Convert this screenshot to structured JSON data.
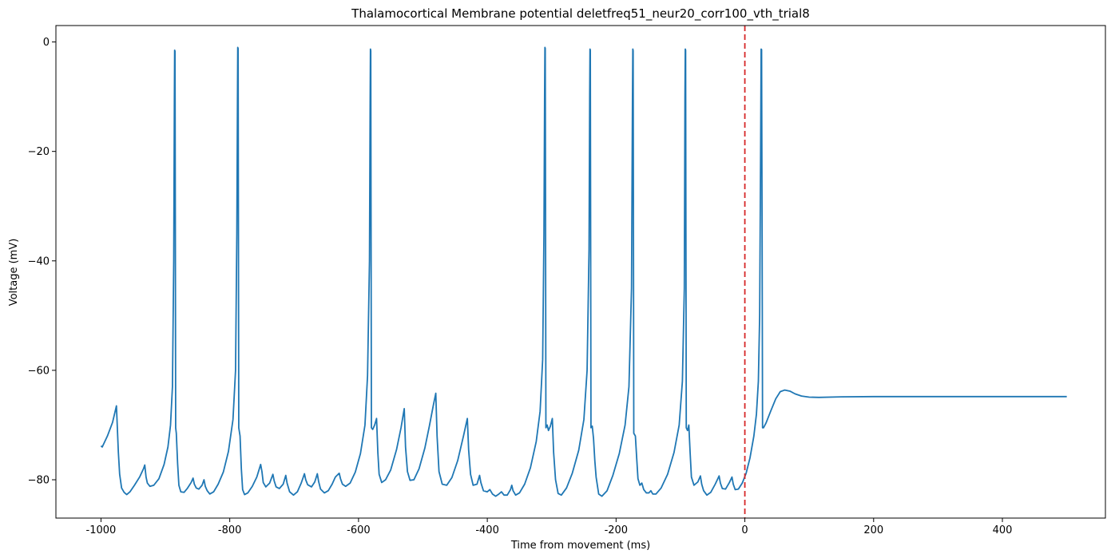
{
  "chart_data": {
    "type": "line",
    "title": "Thalamocortical Membrane potential  deletfreq51_neur20_corr100_vth_trial8",
    "xlabel": "Time from movement (ms)",
    "ylabel": "Voltage (mV)",
    "xlim": [
      -1070,
      560
    ],
    "ylim": [
      -87,
      3
    ],
    "x_ticks": [
      -1000,
      -800,
      -600,
      -400,
      -200,
      0,
      200,
      400
    ],
    "x_tick_labels": [
      "-1000",
      "-800",
      "-600",
      "-400",
      "-200",
      "0",
      "200",
      "400"
    ],
    "y_ticks": [
      -80,
      -60,
      -40,
      -20,
      0
    ],
    "y_tick_labels": [
      "−80",
      "−60",
      "−40",
      "−20",
      "0"
    ],
    "grid": false,
    "series": [
      {
        "color": "#1f77b4",
        "segments": [
          [
            [
              -1000,
              -73.8
            ],
            [
              -998,
              -74
            ],
            [
              -990,
              -72
            ],
            [
              -982,
              -69.5
            ],
            [
              -976,
              -66.5
            ],
            [
              -973,
              -75
            ],
            [
              -971,
              -79
            ],
            [
              -968,
              -81.5
            ],
            [
              -964,
              -82.3
            ],
            [
              -960,
              -82.7
            ],
            [
              -955,
              -82.2
            ],
            [
              -948,
              -81
            ],
            [
              -940,
              -79.5
            ],
            [
              -934,
              -78
            ],
            [
              -932,
              -77.3
            ],
            [
              -930,
              -79.5
            ],
            [
              -928,
              -80.6
            ],
            [
              -924,
              -81.2
            ],
            [
              -918,
              -81
            ],
            [
              -910,
              -79.8
            ],
            [
              -902,
              -77.2
            ],
            [
              -896,
              -74
            ],
            [
              -892,
              -70
            ],
            [
              -889,
              -63
            ],
            [
              -887,
              -40
            ],
            [
              -886,
              -10
            ],
            [
              -885.6,
              -1.5
            ],
            [
              -885,
              -1.7
            ],
            [
              -884.5,
              -35
            ],
            [
              -884,
              -70.5
            ],
            [
              -883,
              -71.5
            ],
            [
              -881,
              -77
            ],
            [
              -879,
              -81
            ],
            [
              -876,
              -82.2
            ],
            [
              -871,
              -82.3
            ],
            [
              -866,
              -81.6
            ],
            [
              -860,
              -80.5
            ],
            [
              -857,
              -79.7
            ],
            [
              -855,
              -80.8
            ],
            [
              -852,
              -81.5
            ],
            [
              -848,
              -81.7
            ],
            [
              -843,
              -81
            ],
            [
              -840,
              -80
            ],
            [
              -838,
              -81.2
            ],
            [
              -835,
              -82
            ],
            [
              -831,
              -82.6
            ],
            [
              -825,
              -82.2
            ],
            [
              -818,
              -80.8
            ],
            [
              -810,
              -78.6
            ],
            [
              -802,
              -74.8
            ],
            [
              -795,
              -69
            ],
            [
              -791,
              -60
            ],
            [
              -789,
              -35
            ],
            [
              -788,
              -10
            ],
            [
              -787.6,
              -1
            ],
            [
              -787,
              -1.2
            ],
            [
              -786.5,
              -35
            ],
            [
              -786,
              -70.5
            ],
            [
              -784,
              -72
            ],
            [
              -782,
              -78
            ],
            [
              -780,
              -81.8
            ],
            [
              -777,
              -82.7
            ],
            [
              -772,
              -82.4
            ],
            [
              -765,
              -81.2
            ],
            [
              -758,
              -79.5
            ],
            [
              -752,
              -77.2
            ],
            [
              -750,
              -78.5
            ],
            [
              -748,
              -80.5
            ],
            [
              -744,
              -81.3
            ],
            [
              -738,
              -80.6
            ],
            [
              -733,
              -79
            ],
            [
              -731,
              -80.2
            ],
            [
              -728,
              -81.3
            ],
            [
              -723,
              -81.6
            ],
            [
              -717,
              -80.8
            ],
            [
              -713,
              -79.2
            ],
            [
              -711,
              -80.6
            ],
            [
              -707,
              -82.2
            ],
            [
              -701,
              -82.8
            ],
            [
              -695,
              -82.2
            ],
            [
              -689,
              -80.6
            ],
            [
              -684,
              -78.9
            ],
            [
              -682,
              -80
            ],
            [
              -679,
              -80.9
            ],
            [
              -673,
              -81.3
            ],
            [
              -668,
              -80.4
            ],
            [
              -664,
              -78.9
            ],
            [
              -662,
              -80.3
            ],
            [
              -659,
              -81.7
            ],
            [
              -653,
              -82.4
            ],
            [
              -647,
              -82
            ],
            [
              -641,
              -80.8
            ],
            [
              -636,
              -79.5
            ],
            [
              -630,
              -78.8
            ],
            [
              -628,
              -79.8
            ],
            [
              -625,
              -80.8
            ],
            [
              -620,
              -81.2
            ],
            [
              -613,
              -80.6
            ],
            [
              -605,
              -78.6
            ],
            [
              -597,
              -75.2
            ],
            [
              -590,
              -70
            ],
            [
              -586,
              -61
            ],
            [
              -583,
              -40
            ],
            [
              -582,
              -12
            ],
            [
              -581.5,
              -1.3
            ],
            [
              -581,
              -1.6
            ],
            [
              -580.5,
              -35
            ],
            [
              -580,
              -70.5
            ],
            [
              -578,
              -70.8
            ],
            [
              -575,
              -70
            ],
            [
              -572,
              -68.8
            ],
            [
              -570,
              -75
            ],
            [
              -568,
              -79
            ],
            [
              -564,
              -80.5
            ],
            [
              -558,
              -80
            ],
            [
              -550,
              -78.2
            ],
            [
              -541,
              -74.5
            ],
            [
              -534,
              -70.5
            ],
            [
              -529,
              -67
            ],
            [
              -527,
              -74
            ],
            [
              -524,
              -78.5
            ],
            [
              -520,
              -80.1
            ],
            [
              -514,
              -80
            ],
            [
              -506,
              -78
            ],
            [
              -497,
              -74.2
            ],
            [
              -490,
              -70.2
            ],
            [
              -484,
              -66.5
            ],
            [
              -480,
              -64.2
            ],
            [
              -478,
              -72
            ],
            [
              -475,
              -78.5
            ],
            [
              -470,
              -80.8
            ],
            [
              -463,
              -81
            ],
            [
              -455,
              -79.6
            ],
            [
              -446,
              -76.5
            ],
            [
              -437,
              -72
            ],
            [
              -431,
              -68.8
            ],
            [
              -429,
              -74.5
            ],
            [
              -426,
              -79
            ],
            [
              -422,
              -81
            ],
            [
              -416,
              -80.8
            ],
            [
              -412,
              -79.2
            ],
            [
              -410,
              -80.5
            ],
            [
              -406,
              -82
            ],
            [
              -400,
              -82.2
            ],
            [
              -396,
              -81.8
            ],
            [
              -392,
              -82.6
            ],
            [
              -387,
              -83
            ],
            [
              -382,
              -82.6
            ],
            [
              -378,
              -82.2
            ],
            [
              -374,
              -82.8
            ],
            [
              -369,
              -82.8
            ],
            [
              -364,
              -81.8
            ],
            [
              -362,
              -81
            ],
            [
              -360,
              -82
            ],
            [
              -356,
              -82.8
            ],
            [
              -350,
              -82.4
            ],
            [
              -342,
              -80.8
            ],
            [
              -333,
              -77.8
            ],
            [
              -324,
              -73
            ],
            [
              -318,
              -67.5
            ],
            [
              -314,
              -58
            ],
            [
              -312,
              -35
            ],
            [
              -311,
              -10
            ],
            [
              -310.5,
              -1
            ],
            [
              -310,
              -1.2
            ],
            [
              -309.5,
              -35
            ],
            [
              -309,
              -70.5
            ],
            [
              -307,
              -70
            ],
            [
              -305,
              -71
            ],
            [
              -302,
              -70.2
            ],
            [
              -299,
              -68.8
            ],
            [
              -297,
              -75
            ],
            [
              -294,
              -80
            ],
            [
              -290,
              -82.5
            ],
            [
              -285,
              -82.8
            ],
            [
              -277,
              -81.5
            ],
            [
              -268,
              -78.8
            ],
            [
              -258,
              -74.6
            ],
            [
              -250,
              -69
            ],
            [
              -245,
              -60
            ],
            [
              -242,
              -38
            ],
            [
              -241,
              -10
            ],
            [
              -240.5,
              -1.3
            ],
            [
              -240,
              -1.5
            ],
            [
              -239.5,
              -35
            ],
            [
              -239,
              -70.5
            ],
            [
              -237,
              -70.2
            ],
            [
              -235,
              -72.5
            ],
            [
              -233,
              -76.5
            ],
            [
              -231,
              -79.5
            ],
            [
              -227,
              -82.6
            ],
            [
              -222,
              -83
            ],
            [
              -214,
              -82
            ],
            [
              -205,
              -79.2
            ],
            [
              -195,
              -75.2
            ],
            [
              -186,
              -70
            ],
            [
              -180,
              -63
            ],
            [
              -176,
              -45
            ],
            [
              -174.5,
              -10
            ],
            [
              -174,
              -1.3
            ],
            [
              -173.5,
              -1.6
            ],
            [
              -173,
              -35
            ],
            [
              -172.5,
              -71.5
            ],
            [
              -170,
              -72
            ],
            [
              -168,
              -76
            ],
            [
              -166,
              -79.8
            ],
            [
              -163,
              -81
            ],
            [
              -160,
              -80.6
            ],
            [
              -157,
              -81.8
            ],
            [
              -153,
              -82.4
            ],
            [
              -149,
              -82.4
            ],
            [
              -146,
              -82
            ],
            [
              -143,
              -82.6
            ],
            [
              -138,
              -82.6
            ],
            [
              -130,
              -81.5
            ],
            [
              -120,
              -79
            ],
            [
              -110,
              -75
            ],
            [
              -102,
              -70
            ],
            [
              -97,
              -62
            ],
            [
              -94,
              -45
            ],
            [
              -93,
              -10
            ],
            [
              -92.5,
              -1.3
            ],
            [
              -92,
              -1.5
            ],
            [
              -91.5,
              -35
            ],
            [
              -91,
              -70.5
            ],
            [
              -89,
              -71
            ],
            [
              -87,
              -70
            ],
            [
              -85,
              -75
            ],
            [
              -83,
              -79.5
            ],
            [
              -79,
              -81
            ],
            [
              -73,
              -80.4
            ],
            [
              -69,
              -79.3
            ],
            [
              -67,
              -80.8
            ],
            [
              -64,
              -82
            ],
            [
              -59,
              -82.8
            ],
            [
              -53,
              -82.3
            ],
            [
              -46,
              -80.8
            ],
            [
              -40,
              -79.3
            ],
            [
              -38,
              -80.6
            ],
            [
              -35,
              -81.6
            ],
            [
              -30,
              -81.7
            ],
            [
              -24,
              -80.5
            ],
            [
              -20,
              -79.5
            ],
            [
              -18,
              -80.8
            ],
            [
              -15,
              -81.8
            ],
            [
              -10,
              -81.7
            ],
            [
              -4,
              -80.6
            ],
            [
              2,
              -78.8
            ],
            [
              8,
              -76
            ],
            [
              14,
              -72
            ],
            [
              18,
              -68
            ],
            [
              21,
              -62
            ],
            [
              23,
              -50
            ],
            [
              24.5,
              -20
            ],
            [
              25.3,
              -1.3
            ],
            [
              26,
              -1.4
            ],
            [
              26.8,
              -35
            ],
            [
              27.5,
              -70.5
            ],
            [
              29,
              -70.5
            ],
            [
              33,
              -69.6
            ],
            [
              40,
              -67.5
            ],
            [
              48,
              -65.2
            ],
            [
              55,
              -63.9
            ],
            [
              62,
              -63.6
            ],
            [
              70,
              -63.8
            ],
            [
              78,
              -64.3
            ],
            [
              88,
              -64.7
            ],
            [
              100,
              -64.9
            ],
            [
              115,
              -64.95
            ],
            [
              150,
              -64.85
            ],
            [
              200,
              -64.8
            ],
            [
              300,
              -64.8
            ],
            [
              400,
              -64.8
            ],
            [
              500,
              -64.8
            ]
          ]
        ]
      }
    ],
    "reference_lines": [
      {
        "axis": "x",
        "value": 0,
        "color": "#d62728",
        "style": "dashed"
      }
    ]
  }
}
